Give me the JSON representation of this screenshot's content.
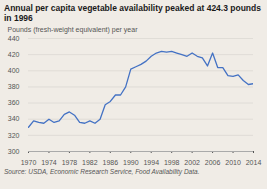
{
  "chart_data": {
    "type": "line",
    "title": "Annual per capita vegetable availability peaked at 424.3 pounds in 1996",
    "ylabel": "Pounds (fresh-weight equivalent) per year",
    "source": "Source: USDA, Economic Research Service, Food Availability Data.",
    "x": [
      1970,
      1971,
      1972,
      1973,
      1974,
      1975,
      1976,
      1977,
      1978,
      1979,
      1980,
      1981,
      1982,
      1983,
      1984,
      1985,
      1986,
      1987,
      1988,
      1989,
      1990,
      1991,
      1992,
      1993,
      1994,
      1995,
      1996,
      1997,
      1998,
      1999,
      2000,
      2001,
      2002,
      2003,
      2004,
      2005,
      2006,
      2007,
      2008,
      2009,
      2010,
      2011,
      2012,
      2013,
      2014
    ],
    "values": [
      330,
      338,
      336,
      335,
      340,
      336,
      338,
      346,
      349,
      345,
      336,
      335,
      338,
      335,
      340,
      358,
      362,
      370,
      370,
      380,
      402,
      405,
      408,
      412,
      418,
      422,
      424,
      423,
      424,
      422,
      420,
      418,
      422,
      418,
      416,
      406,
      422,
      404,
      404,
      394,
      393,
      395,
      388,
      383,
      384
    ],
    "color": "#4472C4",
    "xlim": [
      1970,
      2014
    ],
    "xticks": [
      1970,
      1974,
      1978,
      1982,
      1986,
      1990,
      1994,
      1998,
      2002,
      2006,
      2010,
      2014
    ],
    "ylim": [
      300,
      440
    ],
    "yticks": [
      300,
      320,
      340,
      360,
      380,
      400,
      420,
      440
    ],
    "grid": true
  }
}
